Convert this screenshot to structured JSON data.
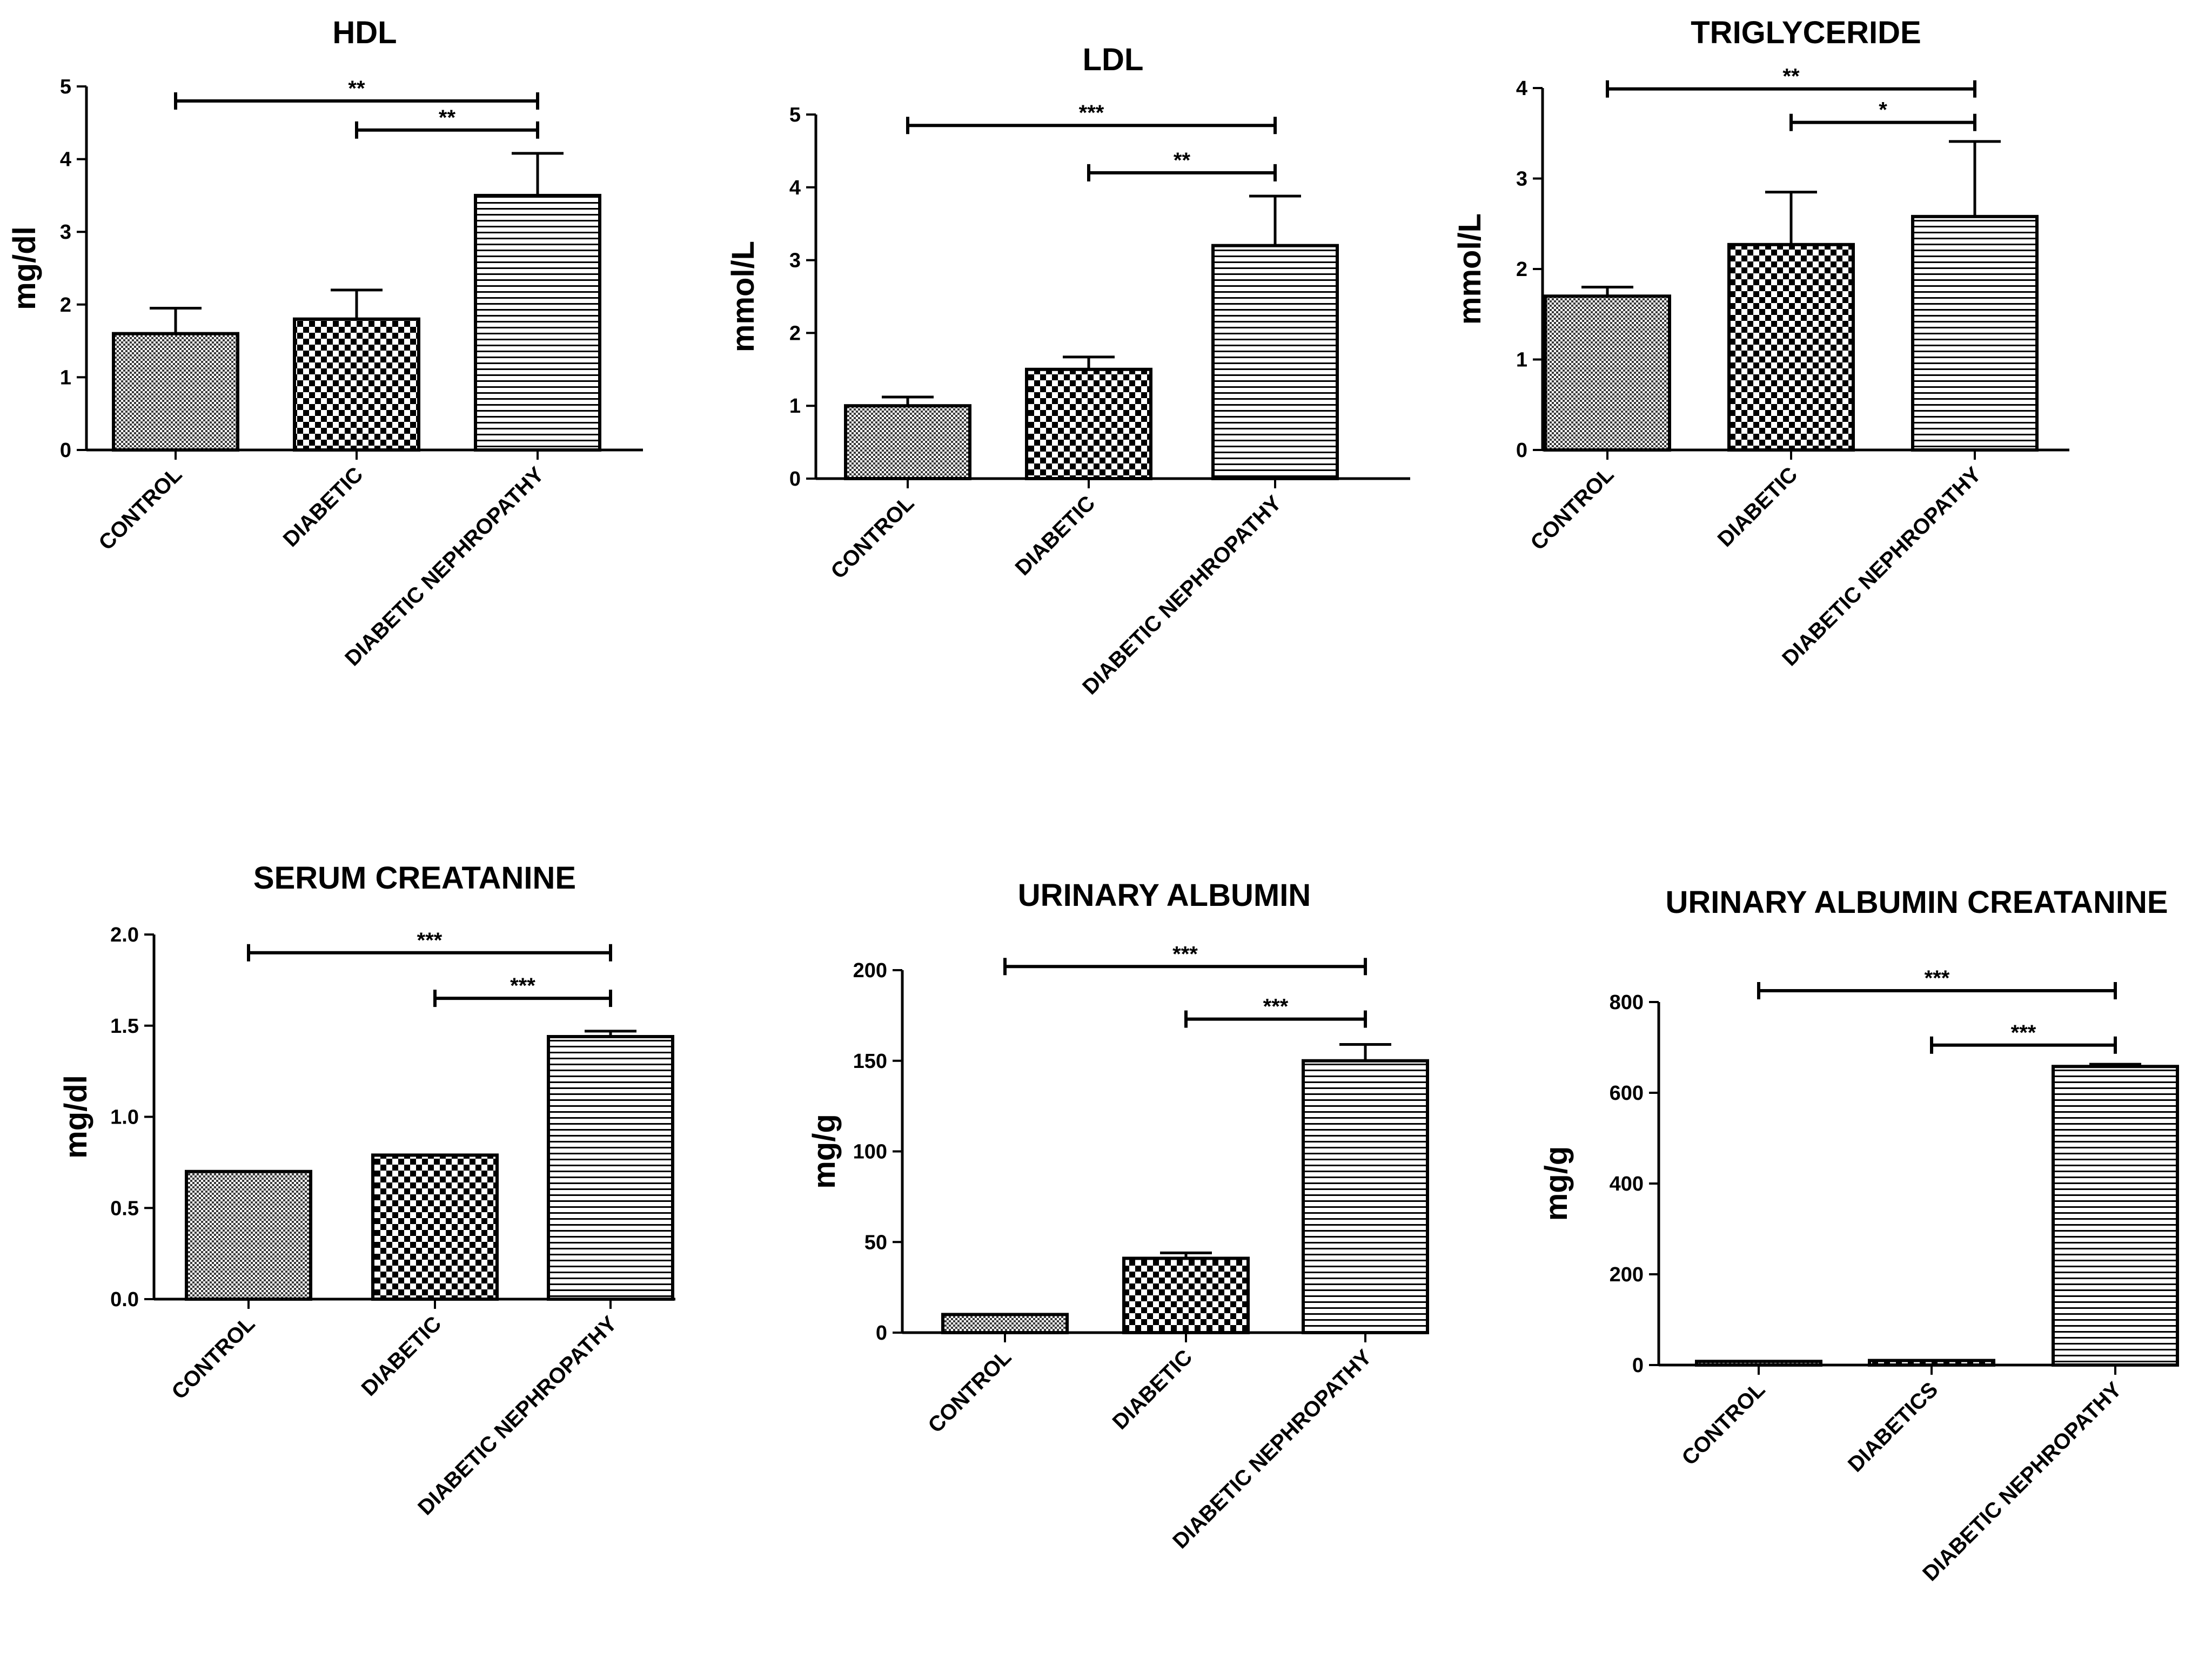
{
  "chart_data": [
    {
      "type": "bar",
      "title": "HDL",
      "ylabel": "mg/dl",
      "xlabel": "",
      "ylim": [
        0,
        5
      ],
      "yticks": [
        "0",
        "1",
        "2",
        "3",
        "4",
        "5"
      ],
      "categories": [
        "CONTROL",
        "DIABETIC",
        "DIABETIC NEPHROPATHY"
      ],
      "values": [
        1.6,
        1.8,
        3.5
      ],
      "errors": [
        0.35,
        0.4,
        0.58
      ],
      "significance": [
        {
          "from": 0,
          "to": 2,
          "level": 4.8,
          "label": "**"
        },
        {
          "from": 1,
          "to": 2,
          "level": 4.4,
          "label": "**"
        }
      ]
    },
    {
      "type": "bar",
      "title": "LDL",
      "ylabel": "mmol/L",
      "xlabel": "",
      "ylim": [
        0,
        5
      ],
      "yticks": [
        "0",
        "1",
        "2",
        "3",
        "4",
        "5"
      ],
      "categories": [
        "CONTROL",
        "DIABETIC",
        "DIABETIC NEPHROPATHY"
      ],
      "values": [
        1.0,
        1.5,
        3.2
      ],
      "errors": [
        0.12,
        0.17,
        0.68
      ],
      "significance": [
        {
          "from": 0,
          "to": 2,
          "level": 4.85,
          "label": "***"
        },
        {
          "from": 1,
          "to": 2,
          "level": 4.2,
          "label": "**"
        }
      ]
    },
    {
      "type": "bar",
      "title": "TRIGLYCERIDE",
      "ylabel": "mmol/L",
      "xlabel": "",
      "ylim": [
        0,
        4
      ],
      "yticks": [
        "0",
        "1",
        "2",
        "3",
        "4"
      ],
      "categories": [
        "CONTROL",
        "DIABETIC",
        "DIABETIC NEPHROPATHY"
      ],
      "values": [
        1.7,
        2.27,
        2.58
      ],
      "errors": [
        0.1,
        0.58,
        0.83
      ],
      "significance": [
        {
          "from": 0,
          "to": 2,
          "level": 3.99,
          "label": "**"
        },
        {
          "from": 1,
          "to": 2,
          "level": 3.62,
          "label": "*"
        }
      ]
    },
    {
      "type": "bar",
      "title": "SERUM CREATANINE",
      "ylabel": "mg/dl",
      "xlabel": "",
      "ylim": [
        0,
        2.0
      ],
      "yticks": [
        "0.0",
        "0.5",
        "1.0",
        "1.5",
        "2.0"
      ],
      "categories": [
        "CONTROL",
        "DIABETIC",
        "DIABETIC NEPHROPATHY"
      ],
      "values": [
        0.7,
        0.79,
        1.44
      ],
      "errors": [
        0.005,
        0.005,
        0.03
      ],
      "significance": [
        {
          "from": 0,
          "to": 2,
          "level": 1.9,
          "label": "***"
        },
        {
          "from": 1,
          "to": 2,
          "level": 1.65,
          "label": "***"
        }
      ]
    },
    {
      "type": "bar",
      "title": "URINARY ALBUMIN",
      "ylabel": "mg/g",
      "xlabel": "",
      "ylim": [
        0,
        200
      ],
      "yticks": [
        "0",
        "50",
        "100",
        "150",
        "200"
      ],
      "categories": [
        "CONTROL",
        "DIABETIC",
        "DIABETIC NEPHROPATHY"
      ],
      "values": [
        10,
        41,
        150
      ],
      "errors": [
        0.5,
        3,
        9
      ],
      "significance": [
        {
          "from": 0,
          "to": 2,
          "level": 202,
          "label": "***"
        },
        {
          "from": 1,
          "to": 2,
          "level": 173,
          "label": "***"
        }
      ]
    },
    {
      "type": "bar",
      "title": "URINARY ALBUMIN CREATANINE",
      "ylabel": "mg/g",
      "xlabel": "",
      "ylim": [
        0,
        800
      ],
      "yticks": [
        "0",
        "200",
        "400",
        "600",
        "800"
      ],
      "categories": [
        "CONTROL",
        "DIABETICS",
        "DIABETIC NEPHROPATHY"
      ],
      "values": [
        8,
        10,
        658
      ],
      "errors": [
        2,
        3,
        5
      ],
      "significance": [
        {
          "from": 0,
          "to": 2,
          "level": 825,
          "label": "***"
        },
        {
          "from": 1,
          "to": 2,
          "level": 705,
          "label": "***"
        }
      ]
    }
  ]
}
